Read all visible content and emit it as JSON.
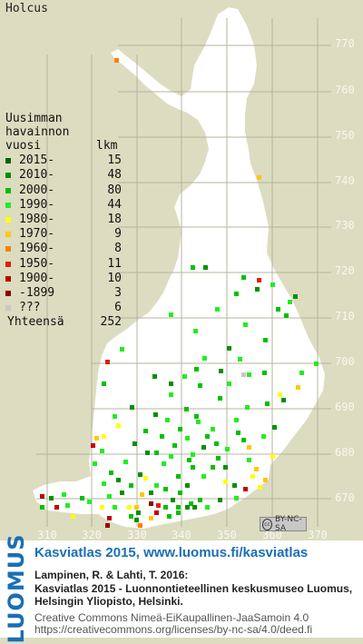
{
  "species": "Holcus",
  "legend": {
    "header": [
      "Uusimman",
      "havainnon"
    ],
    "col_year": "vuosi",
    "col_count": "lkm",
    "rows": [
      {
        "label": "2015-",
        "count": "15",
        "color": "#006400"
      },
      {
        "label": "2010-",
        "count": "48",
        "color": "#009000"
      },
      {
        "label": "2000-",
        "count": "80",
        "color": "#00c000"
      },
      {
        "label": "1990-",
        "count": "44",
        "color": "#20ee20"
      },
      {
        "label": "1980-",
        "count": "18",
        "color": "#ffff00"
      },
      {
        "label": "1970-",
        "count": "9",
        "color": "#ffc800"
      },
      {
        "label": "1960-",
        "count": "8",
        "color": "#ff8000"
      },
      {
        "label": "1950-",
        "count": "11",
        "color": "#e02000"
      },
      {
        "label": "1900-",
        "count": "10",
        "color": "#c00000"
      },
      {
        "label": "-1899",
        "count": "3",
        "color": "#900000"
      },
      {
        "label": "???",
        "count": "6",
        "color": "#c8c8c8"
      }
    ],
    "total_label": "Yhteensä",
    "total_count": "252"
  },
  "grid_north": [
    "770",
    "760",
    "750",
    "740",
    "730",
    "720",
    "710",
    "700",
    "690",
    "680",
    "670"
  ],
  "grid_east": [
    "310",
    "320",
    "330",
    "340",
    "350",
    "360",
    "370"
  ],
  "license_badge": "BY-NC-SA",
  "footer": {
    "logo": "LUOMUS",
    "title": "Kasviatlas 2015, www.luomus.fi/kasviatlas",
    "citation_1": "Lampinen, R. & Lahti, T. 2016:",
    "citation_2": "Kasviatlas 2015 - Luonnontieteellinen keskusmuseo Luomus,",
    "citation_3": "Helsingin Yliopisto, Helsinki.",
    "license_1": "Creative Commons Nimeä-EiKaupallinen-JaaSamoin 4.0",
    "license_2": "https://creativecommons.org/licenses/by-nc-sa/4.0/deed.fi"
  },
  "colors": {
    "background": "#dcdcc0",
    "land": "#ffffff",
    "grid": "#b4b4a0",
    "accent": "#1a6fb5"
  }
}
